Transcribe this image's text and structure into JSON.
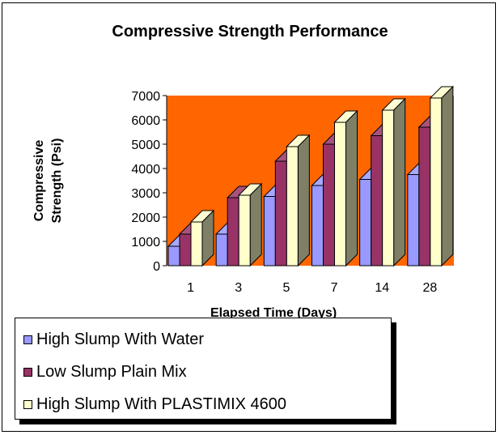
{
  "chart_data": {
    "type": "bar",
    "title": "Compressive Strength Performance",
    "xlabel": "Elapsed Time (Days)",
    "ylabel": "Compressive Strength (Psi)",
    "categories": [
      "1",
      "3",
      "5",
      "7",
      "14",
      "28"
    ],
    "ylim": [
      0,
      7000
    ],
    "yticks": [
      "0",
      "1000",
      "2000",
      "3000",
      "4000",
      "5000",
      "6000",
      "7000"
    ],
    "legend_position": "bottom-left",
    "plot_background": "#FF6600",
    "series": [
      {
        "name": "High Slump With Water",
        "color": "#9999FF",
        "values": [
          800,
          1300,
          2850,
          3300,
          3550,
          3750
        ]
      },
      {
        "name": "Low Slump Plain Mix",
        "color": "#993366",
        "values": [
          1300,
          2800,
          4300,
          5000,
          5350,
          5700
        ]
      },
      {
        "name": "High Slump With PLASTIMIX 4600",
        "color": "#FFFFCC",
        "values": [
          1800,
          2900,
          4900,
          5900,
          6400,
          6900
        ]
      }
    ]
  }
}
